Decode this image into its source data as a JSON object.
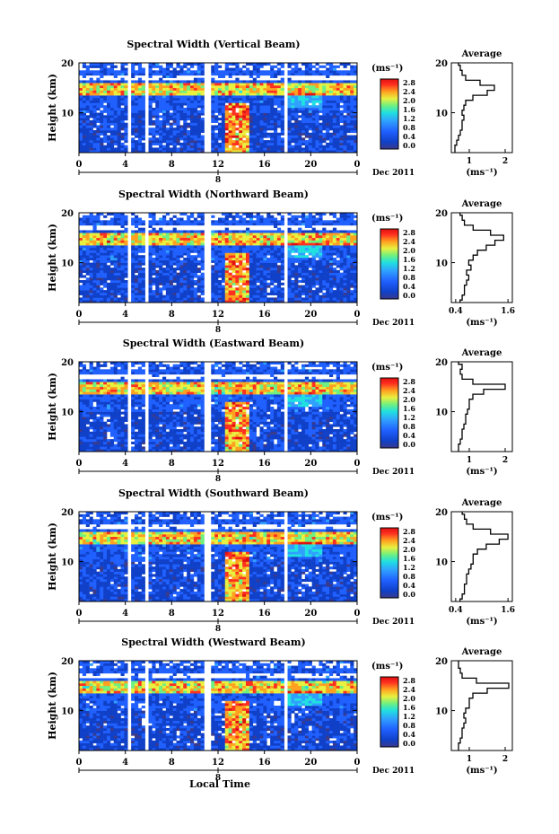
{
  "figure": {
    "xlabel": "Local Time",
    "date_label": "Dec 2011",
    "day_label": "8",
    "ylabel": "Height (km)",
    "cbar_unit": "(ms⁻¹)",
    "avg_title": "Average",
    "avg_xlabel": "(ms⁻¹)",
    "colorbar": {
      "ticks": [
        "2.8",
        "2.4",
        "2.0",
        "1.6",
        "1.2",
        "0.8",
        "0.4",
        "0.0"
      ],
      "range": [
        0.0,
        2.8
      ],
      "colors": [
        "#3a3a8c",
        "#1040c8",
        "#2060ff",
        "#30a0ff",
        "#20e0e0",
        "#70f080",
        "#e8f040",
        "#ffa020",
        "#ff3020",
        "#e01010"
      ]
    },
    "time_ticks": [
      "0",
      "4",
      "8",
      "12",
      "16",
      "20",
      "0"
    ],
    "time_range": [
      0,
      24
    ],
    "height_ticks": [
      "20",
      "10"
    ],
    "height_range": [
      2,
      20
    ],
    "data_gaps_hours": [
      [
        4.1,
        4.6
      ],
      [
        5.7,
        6.0
      ],
      [
        10.9,
        11.3
      ],
      [
        17.7,
        18.0
      ]
    ]
  },
  "chart_data": [
    {
      "type": "heatmap",
      "title": "Spectral Width (Vertical Beam)",
      "ylabel": "Height (km)",
      "xlabel": "",
      "x_ticks": [
        "0",
        "4",
        "8",
        "12",
        "16",
        "20",
        "0"
      ],
      "y_ticks": [
        "20",
        "10"
      ],
      "colorbar_ticks": [
        "2.8",
        "2.4",
        "2.0",
        "1.6",
        "1.2",
        "0.8",
        "0.4",
        "0.0"
      ],
      "avg_profile": {
        "title": "Average",
        "xlabel": "(ms⁻¹)",
        "x_ticks": [
          "1",
          "2"
        ],
        "xlim": [
          0.5,
          2.2
        ],
        "y_ticks": [
          "20",
          "10"
        ],
        "heights": [
          2,
          3,
          4,
          5,
          6,
          7,
          8,
          9,
          10,
          11,
          12,
          13,
          14,
          15,
          16,
          17,
          18,
          19,
          20
        ],
        "values": [
          0.6,
          0.6,
          0.65,
          0.7,
          0.75,
          0.8,
          0.8,
          0.85,
          0.8,
          0.85,
          0.9,
          1.1,
          1.5,
          1.7,
          1.3,
          0.9,
          0.8,
          0.75,
          0.7
        ]
      }
    },
    {
      "type": "heatmap",
      "title": "Spectral Width (Northward Beam)",
      "ylabel": "Height (km)",
      "xlabel": "",
      "x_ticks": [
        "0",
        "4",
        "8",
        "12",
        "16",
        "20",
        "0"
      ],
      "y_ticks": [
        "20",
        "10"
      ],
      "colorbar_ticks": [
        "2.8",
        "2.4",
        "2.0",
        "1.6",
        "1.2",
        "0.8",
        "0.4",
        "0.0"
      ],
      "avg_profile": {
        "title": "Average",
        "xlabel": "(ms⁻¹)",
        "x_ticks": [
          "0.4",
          "1.6"
        ],
        "xlim": [
          0.3,
          1.7
        ],
        "y_ticks": [
          "20",
          "10"
        ],
        "heights": [
          2,
          3,
          4,
          5,
          6,
          7,
          8,
          9,
          10,
          11,
          12,
          13,
          14,
          15,
          16,
          17,
          18,
          19,
          20
        ],
        "values": [
          0.5,
          0.55,
          0.6,
          0.6,
          0.65,
          0.7,
          0.65,
          0.75,
          0.7,
          0.8,
          0.9,
          1.1,
          1.3,
          1.5,
          1.2,
          0.8,
          0.6,
          0.55,
          0.5
        ]
      }
    },
    {
      "type": "heatmap",
      "title": "Spectral Width (Eastward Beam)",
      "ylabel": "Height (km)",
      "xlabel": "",
      "x_ticks": [
        "0",
        "4",
        "8",
        "12",
        "16",
        "20",
        "0"
      ],
      "y_ticks": [
        "20",
        "10"
      ],
      "colorbar_ticks": [
        "2.8",
        "2.4",
        "2.0",
        "1.6",
        "1.2",
        "0.8",
        "0.4",
        "0.0"
      ],
      "avg_profile": {
        "title": "Average",
        "xlabel": "(ms⁻¹)",
        "x_ticks": [
          "1",
          "2"
        ],
        "xlim": [
          0.5,
          2.2
        ],
        "y_ticks": [
          "20",
          "10"
        ],
        "heights": [
          2,
          3,
          4,
          5,
          6,
          7,
          8,
          9,
          10,
          11,
          12,
          13,
          14,
          15,
          16,
          17,
          18,
          19,
          20
        ],
        "values": [
          0.7,
          0.7,
          0.75,
          0.8,
          0.8,
          0.85,
          0.9,
          0.9,
          0.95,
          1.0,
          1.0,
          1.1,
          1.4,
          2.0,
          1.1,
          0.8,
          0.75,
          0.8,
          0.7
        ]
      }
    },
    {
      "type": "heatmap",
      "title": "Spectral Width (Southward Beam)",
      "ylabel": "Height (km)",
      "xlabel": "",
      "x_ticks": [
        "0",
        "4",
        "8",
        "12",
        "16",
        "20",
        "0"
      ],
      "y_ticks": [
        "20",
        "10"
      ],
      "colorbar_ticks": [
        "2.8",
        "2.4",
        "2.0",
        "1.6",
        "1.2",
        "0.8",
        "0.4",
        "0.0"
      ],
      "avg_profile": {
        "title": "Average",
        "xlabel": "(ms⁻¹)",
        "x_ticks": [
          "0.4",
          "1.6"
        ],
        "xlim": [
          0.3,
          1.7
        ],
        "y_ticks": [
          "20",
          "10"
        ],
        "heights": [
          2,
          3,
          4,
          5,
          6,
          7,
          8,
          9,
          10,
          11,
          12,
          13,
          14,
          15,
          16,
          17,
          18,
          19,
          20
        ],
        "values": [
          0.5,
          0.55,
          0.6,
          0.6,
          0.65,
          0.65,
          0.7,
          0.75,
          0.8,
          0.8,
          0.9,
          1.1,
          1.4,
          1.6,
          1.2,
          0.8,
          0.65,
          0.6,
          0.55
        ]
      }
    },
    {
      "type": "heatmap",
      "title": "Spectral Width (Westward Beam)",
      "ylabel": "Height (km)",
      "xlabel": "",
      "x_ticks": [
        "0",
        "4",
        "8",
        "12",
        "16",
        "20",
        "0"
      ],
      "y_ticks": [
        "20",
        "10"
      ],
      "colorbar_ticks": [
        "2.8",
        "2.4",
        "2.0",
        "1.6",
        "1.2",
        "0.8",
        "0.4",
        "0.0"
      ],
      "avg_profile": {
        "title": "Average",
        "xlabel": "(ms⁻¹)",
        "x_ticks": [
          "1",
          "2"
        ],
        "xlim": [
          0.5,
          2.2
        ],
        "y_ticks": [
          "20",
          "10"
        ],
        "heights": [
          2,
          3,
          4,
          5,
          6,
          7,
          8,
          9,
          10,
          11,
          12,
          13,
          14,
          15,
          16,
          17,
          18,
          19,
          20
        ],
        "values": [
          0.7,
          0.7,
          0.75,
          0.8,
          0.8,
          0.85,
          0.9,
          0.85,
          0.9,
          1.0,
          1.0,
          1.1,
          1.5,
          2.1,
          1.2,
          0.8,
          0.75,
          0.7,
          0.7
        ]
      }
    }
  ]
}
